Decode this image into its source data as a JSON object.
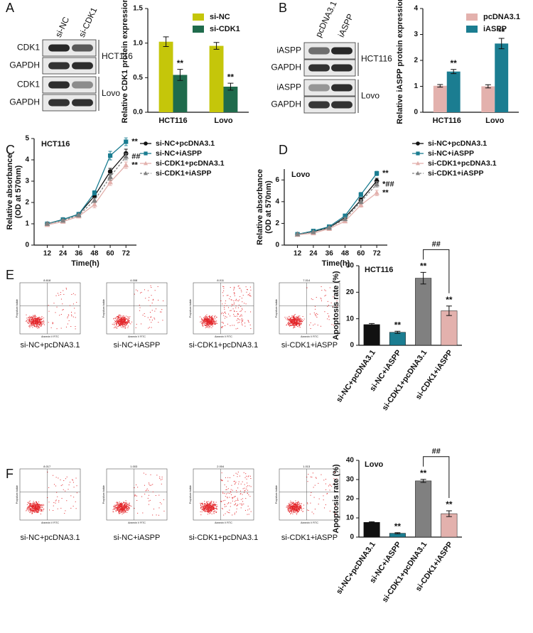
{
  "panel_labels": [
    "A",
    "B",
    "C",
    "D",
    "E",
    "F"
  ],
  "blot_A": {
    "lanes": [
      "si-NC",
      "si-CDK1"
    ],
    "rows": [
      "CDK1",
      "GAPDH",
      "CDK1",
      "GAPDH"
    ],
    "groups": [
      "HCT116",
      "Lovo"
    ]
  },
  "blot_B": {
    "lanes": [
      "pcDNA3.1",
      "iASPP"
    ],
    "rows": [
      "iASPP",
      "GAPDH",
      "iASPP",
      "GAPDH"
    ],
    "groups": [
      "HCT116",
      "Lovo"
    ]
  },
  "flow_axis": {
    "x": "Annexin V FITC",
    "y": "Propidium Iodide"
  },
  "flow_E": [
    {
      "label": "si-NC+pcDNA3.1",
      "quadrant_value": "8.618"
    },
    {
      "label": "si-NC+iASPP",
      "quadrant_value": "4.008"
    },
    {
      "label": "si-CDK1+pcDNA3.1",
      "quadrant_value": "8.011"
    },
    {
      "label": "si-CDK1+iASPP",
      "quadrant_value": "7.014"
    }
  ],
  "flow_F": [
    {
      "label": "si-NC+pcDNA3.1",
      "quadrant_value": "8.017"
    },
    {
      "label": "si-NC+iASPP",
      "quadrant_value": "1.003"
    },
    {
      "label": "si-CDK1+pcDNA3.1",
      "quadrant_value": "2.004"
    },
    {
      "label": "si-CDK1+iASPP",
      "quadrant_value": "1.013"
    }
  ],
  "chart_data": [
    {
      "type": "bar",
      "ylabel": "Relative CDK1 protein expression",
      "categories": [
        "HCT116",
        "Lovo"
      ],
      "series": [
        {
          "name": "si-NC",
          "color": "#c5c60a",
          "values": [
            1.02,
            0.96
          ],
          "errors": [
            0.07,
            0.05
          ],
          "significance": [
            null,
            null
          ]
        },
        {
          "name": "si-CDK1",
          "color": "#1f6b4c",
          "values": [
            0.54,
            0.37
          ],
          "errors": [
            0.08,
            0.05
          ],
          "significance": [
            "**",
            "**"
          ]
        }
      ],
      "ylim": [
        0,
        1.5
      ],
      "yticks": [
        {
          "value": 0,
          "label": "0.0"
        },
        0.5,
        {
          "value": 1,
          "label": "1.0"
        },
        1.5
      ],
      "legend": "upper right"
    },
    {
      "type": "bar",
      "ylabel": "Relative iASPP protein expression",
      "categories": [
        "HCT116",
        "Lovo"
      ],
      "series": [
        {
          "name": "pcDNA3.1",
          "color": "#e3b1ad",
          "values": [
            1.02,
            1.0
          ],
          "errors": [
            0.05,
            0.06
          ],
          "significance": [
            null,
            null
          ]
        },
        {
          "name": "iASPP",
          "color": "#1b7d91",
          "values": [
            1.57,
            2.65
          ],
          "errors": [
            0.08,
            0.2
          ],
          "significance": [
            "**",
            "**"
          ]
        }
      ],
      "ylim": [
        0,
        4
      ],
      "yticks": [
        0,
        1,
        2,
        3,
        4
      ],
      "legend": "upper right"
    },
    {
      "type": "line",
      "title": "HCT116",
      "xlabel": "Time(h)",
      "ylabel": [
        "Relative absorbance",
        "(OD at 570nm)"
      ],
      "x": [
        12,
        24,
        36,
        48,
        60,
        72
      ],
      "xlim": [
        2,
        80
      ],
      "xticks": [
        12,
        24,
        36,
        48,
        60,
        72
      ],
      "ylim": [
        0,
        5
      ],
      "yticks": [
        0,
        1,
        2,
        3,
        4,
        5
      ],
      "legend": "right",
      "series": [
        {
          "name": "si-NC+pcDNA3.1",
          "color": "#111111",
          "marker": "circle",
          "dashed": false,
          "values": [
            1.0,
            1.2,
            1.45,
            2.3,
            3.45,
            4.3
          ],
          "errors": [
            0.05,
            0.05,
            0.06,
            0.1,
            0.15,
            0.2
          ],
          "end_label": null
        },
        {
          "name": "si-NC+iASPP",
          "color": "#1b7d91",
          "marker": "square",
          "dashed": false,
          "values": [
            1.0,
            1.2,
            1.45,
            2.45,
            4.2,
            4.85
          ],
          "errors": [
            0.05,
            0.05,
            0.06,
            0.1,
            0.2,
            0.18
          ],
          "end_label": "**"
        },
        {
          "name": "si-CDK1+pcDNA3.1",
          "color": "#e3b1ad",
          "marker": "triangle",
          "dashed": false,
          "values": [
            0.95,
            1.1,
            1.35,
            1.9,
            2.95,
            3.75
          ],
          "errors": [
            0.05,
            0.05,
            0.06,
            0.15,
            0.15,
            0.15
          ],
          "end_label": "**"
        },
        {
          "name": "si-CDK1+iASPP",
          "color": "#808080",
          "marker": "triangle",
          "dashed": true,
          "values": [
            1.0,
            1.15,
            1.4,
            2.1,
            3.2,
            4.15
          ],
          "errors": [
            0.05,
            0.05,
            0.06,
            0.1,
            0.15,
            0.15
          ],
          "end_label": "##"
        }
      ]
    },
    {
      "type": "line",
      "title": "Lovo",
      "xlabel": "Time(h)",
      "ylabel": [
        "Relative absorbance",
        "(OD at 570nm)"
      ],
      "x": [
        12,
        24,
        36,
        48,
        60,
        72
      ],
      "xlim": [
        2,
        80
      ],
      "xticks": [
        12,
        24,
        36,
        48,
        60,
        72
      ],
      "ylim": [
        0,
        7
      ],
      "yticks": [
        0,
        2,
        4,
        6
      ],
      "legend": "right",
      "series": [
        {
          "name": "si-NC+pcDNA3.1",
          "color": "#111111",
          "marker": "circle",
          "dashed": false,
          "values": [
            1.0,
            1.25,
            1.6,
            2.55,
            4.15,
            5.9
          ],
          "errors": [
            0.05,
            0.05,
            0.08,
            0.12,
            0.2,
            0.25
          ],
          "end_label": null
        },
        {
          "name": "si-NC+iASPP",
          "color": "#1b7d91",
          "marker": "square",
          "dashed": false,
          "values": [
            1.0,
            1.3,
            1.7,
            2.7,
            4.65,
            6.6
          ],
          "errors": [
            0.05,
            0.05,
            0.08,
            0.12,
            0.2,
            0.2
          ],
          "end_label": "**"
        },
        {
          "name": "si-CDK1+pcDNA3.1",
          "color": "#e3b1ad",
          "marker": "triangle",
          "dashed": false,
          "values": [
            0.95,
            1.1,
            1.5,
            2.2,
            3.7,
            4.8
          ],
          "errors": [
            0.05,
            0.05,
            0.08,
            0.15,
            0.2,
            0.25
          ],
          "end_label": "**"
        },
        {
          "name": "si-CDK1+iASPP",
          "color": "#808080",
          "marker": "triangle",
          "dashed": true,
          "values": [
            1.0,
            1.2,
            1.6,
            2.4,
            4.0,
            5.6
          ],
          "errors": [
            0.05,
            0.05,
            0.08,
            0.12,
            0.2,
            0.25
          ],
          "end_label": "*##"
        }
      ]
    },
    {
      "type": "bar",
      "title": "HCT116",
      "ylabel": "Apoptosis rate (%)",
      "categories": [
        "si-NC+pcDNA3.1",
        "si-NC+iASPP",
        "si-CDK1+pcDNA3.1",
        "si-CDK1+iASPP"
      ],
      "values": [
        7.8,
        4.9,
        25.3,
        13.0
      ],
      "errors": [
        0.4,
        0.4,
        2.2,
        1.8
      ],
      "colors": [
        "#111111",
        "#1b7d91",
        "#808080",
        "#e3b1ad"
      ],
      "significance": [
        null,
        "**",
        "**",
        "**"
      ],
      "bracket": {
        "from": 2,
        "to": 3,
        "label": "##"
      },
      "ylim": [
        0,
        30
      ],
      "yticks": [
        0,
        10,
        20,
        30
      ]
    },
    {
      "type": "bar",
      "title": "Lovo",
      "ylabel": "Apoptosis rate (%)",
      "categories": [
        "si-NC+pcDNA3.1",
        "si-NC+iASPP",
        "si-CDK1+pcDNA3.1",
        "si-CDK1+iASPP"
      ],
      "values": [
        7.7,
        2.0,
        29.3,
        12.2
      ],
      "errors": [
        0.3,
        0.3,
        0.8,
        1.5
      ],
      "colors": [
        "#111111",
        "#1b7d91",
        "#808080",
        "#e3b1ad"
      ],
      "significance": [
        null,
        "**",
        "**",
        "**"
      ],
      "bracket": {
        "from": 2,
        "to": 3,
        "label": "##"
      },
      "ylim": [
        0,
        40
      ],
      "yticks": [
        0,
        10,
        20,
        30,
        40
      ]
    }
  ]
}
